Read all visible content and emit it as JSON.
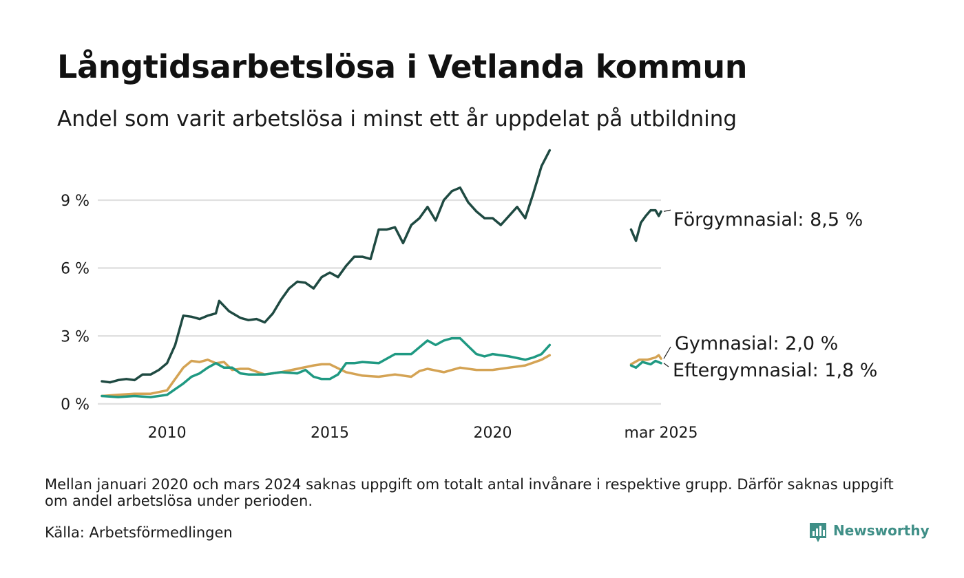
{
  "title": "Långtidsarbetslösa i Vetlanda kommun",
  "subtitle": "Andel som varit arbetslösa i minst ett år uppdelat på utbildning",
  "footnote": "Mellan januari 2020 och mars 2024 saknas uppgift om totalt antal invånare i respektive grupp. Därför saknas uppgift om andel arbetslösa under perioden.",
  "source": "Källa: Arbetsförmedlingen",
  "brand": {
    "name": "Newsworthy",
    "icon": "newsworthy-logo-icon",
    "color": "#3f8f87"
  },
  "chart_data": {
    "type": "line",
    "x_axis": {
      "unit": "year",
      "range": [
        2008.0,
        2025.17
      ],
      "ticks": [
        {
          "value": 2010.0,
          "label": "2010"
        },
        {
          "value": 2015.0,
          "label": "2015"
        },
        {
          "value": 2020.0,
          "label": "2020"
        },
        {
          "value": 2025.17,
          "label": "mar 2025"
        }
      ]
    },
    "y_axis": {
      "unit": "percent",
      "range": [
        0,
        11
      ],
      "ticks": [
        {
          "value": 0,
          "label": "0 %"
        },
        {
          "value": 3,
          "label": "3 %"
        },
        {
          "value": 6,
          "label": "6 %"
        },
        {
          "value": 9,
          "label": "9 %"
        }
      ]
    },
    "grid": true,
    "legend": "direct labels at line ends (right)",
    "series": [
      {
        "key": "forgymnasial",
        "end_label": "Förgymnasial: 8,5 %",
        "color": "#1f4a42",
        "points": [
          [
            2008.0,
            1.0
          ],
          [
            2008.25,
            0.95
          ],
          [
            2008.5,
            1.05
          ],
          [
            2008.75,
            1.1
          ],
          [
            2009.0,
            1.05
          ],
          [
            2009.25,
            1.3
          ],
          [
            2009.5,
            1.3
          ],
          [
            2009.75,
            1.5
          ],
          [
            2010.0,
            1.8
          ],
          [
            2010.25,
            2.6
          ],
          [
            2010.5,
            3.9
          ],
          [
            2010.75,
            3.85
          ],
          [
            2011.0,
            3.75
          ],
          [
            2011.25,
            3.9
          ],
          [
            2011.5,
            4.0
          ],
          [
            2011.6,
            4.55
          ],
          [
            2011.9,
            4.1
          ],
          [
            2012.25,
            3.8
          ],
          [
            2012.5,
            3.7
          ],
          [
            2012.75,
            3.75
          ],
          [
            2013.0,
            3.6
          ],
          [
            2013.25,
            4.0
          ],
          [
            2013.5,
            4.6
          ],
          [
            2013.75,
            5.1
          ],
          [
            2014.0,
            5.4
          ],
          [
            2014.25,
            5.35
          ],
          [
            2014.5,
            5.1
          ],
          [
            2014.75,
            5.6
          ],
          [
            2015.0,
            5.8
          ],
          [
            2015.25,
            5.6
          ],
          [
            2015.5,
            6.1
          ],
          [
            2015.75,
            6.5
          ],
          [
            2016.0,
            6.5
          ],
          [
            2016.25,
            6.4
          ],
          [
            2016.5,
            7.7
          ],
          [
            2016.75,
            7.7
          ],
          [
            2017.0,
            7.8
          ],
          [
            2017.25,
            7.1
          ],
          [
            2017.5,
            7.9
          ],
          [
            2017.75,
            8.2
          ],
          [
            2018.0,
            8.7
          ],
          [
            2018.25,
            8.1
          ],
          [
            2018.5,
            9.0
          ],
          [
            2018.75,
            9.4
          ],
          [
            2019.0,
            9.55
          ],
          [
            2019.25,
            8.9
          ],
          [
            2019.5,
            8.5
          ],
          [
            2019.75,
            8.2
          ],
          [
            2020.0,
            8.2
          ],
          [
            2020.25,
            7.9
          ],
          [
            2020.5,
            8.3
          ],
          [
            2020.75,
            8.7
          ],
          [
            2021.0,
            8.2
          ],
          [
            2021.25,
            9.3
          ],
          [
            2021.5,
            10.5
          ],
          [
            2021.75,
            11.2
          ],
          null,
          [
            2024.25,
            7.7
          ],
          [
            2024.4,
            7.2
          ],
          [
            2024.55,
            8.0
          ],
          [
            2024.7,
            8.3
          ],
          [
            2024.85,
            8.55
          ],
          [
            2025.0,
            8.55
          ],
          [
            2025.1,
            8.3
          ],
          [
            2025.17,
            8.5
          ]
        ]
      },
      {
        "key": "gymnasial",
        "end_label": "Gymnasial: 2,0 %",
        "color": "#d4a354",
        "points": [
          [
            2008.0,
            0.35
          ],
          [
            2008.5,
            0.4
          ],
          [
            2009.0,
            0.45
          ],
          [
            2009.5,
            0.45
          ],
          [
            2010.0,
            0.6
          ],
          [
            2010.25,
            1.1
          ],
          [
            2010.5,
            1.6
          ],
          [
            2010.75,
            1.9
          ],
          [
            2011.0,
            1.85
          ],
          [
            2011.25,
            1.95
          ],
          [
            2011.5,
            1.8
          ],
          [
            2011.75,
            1.85
          ],
          [
            2012.0,
            1.5
          ],
          [
            2012.25,
            1.55
          ],
          [
            2012.5,
            1.55
          ],
          [
            2013.0,
            1.3
          ],
          [
            2013.5,
            1.4
          ],
          [
            2014.0,
            1.55
          ],
          [
            2014.5,
            1.7
          ],
          [
            2014.75,
            1.75
          ],
          [
            2015.0,
            1.75
          ],
          [
            2015.5,
            1.4
          ],
          [
            2016.0,
            1.25
          ],
          [
            2016.5,
            1.2
          ],
          [
            2017.0,
            1.3
          ],
          [
            2017.5,
            1.2
          ],
          [
            2017.75,
            1.45
          ],
          [
            2018.0,
            1.55
          ],
          [
            2018.5,
            1.4
          ],
          [
            2019.0,
            1.6
          ],
          [
            2019.5,
            1.5
          ],
          [
            2020.0,
            1.5
          ],
          [
            2020.5,
            1.6
          ],
          [
            2021.0,
            1.7
          ],
          [
            2021.5,
            1.95
          ],
          [
            2021.75,
            2.15
          ],
          null,
          [
            2024.25,
            1.75
          ],
          [
            2024.5,
            1.95
          ],
          [
            2024.75,
            1.95
          ],
          [
            2025.0,
            2.05
          ],
          [
            2025.1,
            2.15
          ],
          [
            2025.17,
            2.0
          ]
        ]
      },
      {
        "key": "eftergymnasial",
        "end_label": "Eftergymnasial: 1,8 %",
        "color": "#1f9982",
        "points": [
          [
            2008.0,
            0.35
          ],
          [
            2008.5,
            0.3
          ],
          [
            2009.0,
            0.35
          ],
          [
            2009.5,
            0.3
          ],
          [
            2010.0,
            0.4
          ],
          [
            2010.25,
            0.65
          ],
          [
            2010.5,
            0.9
          ],
          [
            2010.75,
            1.2
          ],
          [
            2011.0,
            1.35
          ],
          [
            2011.25,
            1.6
          ],
          [
            2011.5,
            1.8
          ],
          [
            2011.75,
            1.6
          ],
          [
            2012.0,
            1.6
          ],
          [
            2012.25,
            1.35
          ],
          [
            2012.5,
            1.3
          ],
          [
            2013.0,
            1.3
          ],
          [
            2013.5,
            1.4
          ],
          [
            2014.0,
            1.35
          ],
          [
            2014.25,
            1.5
          ],
          [
            2014.5,
            1.2
          ],
          [
            2014.75,
            1.1
          ],
          [
            2015.0,
            1.1
          ],
          [
            2015.25,
            1.3
          ],
          [
            2015.5,
            1.8
          ],
          [
            2015.75,
            1.8
          ],
          [
            2016.0,
            1.85
          ],
          [
            2016.5,
            1.8
          ],
          [
            2017.0,
            2.2
          ],
          [
            2017.5,
            2.2
          ],
          [
            2018.0,
            2.8
          ],
          [
            2018.25,
            2.6
          ],
          [
            2018.5,
            2.8
          ],
          [
            2018.75,
            2.9
          ],
          [
            2019.0,
            2.9
          ],
          [
            2019.25,
            2.55
          ],
          [
            2019.5,
            2.2
          ],
          [
            2019.75,
            2.1
          ],
          [
            2020.0,
            2.2
          ],
          [
            2020.5,
            2.1
          ],
          [
            2021.0,
            1.95
          ],
          [
            2021.25,
            2.05
          ],
          [
            2021.5,
            2.2
          ],
          [
            2021.75,
            2.6
          ],
          null,
          [
            2024.25,
            1.7
          ],
          [
            2024.4,
            1.6
          ],
          [
            2024.6,
            1.85
          ],
          [
            2024.85,
            1.75
          ],
          [
            2025.0,
            1.9
          ],
          [
            2025.17,
            1.8
          ]
        ]
      }
    ]
  }
}
